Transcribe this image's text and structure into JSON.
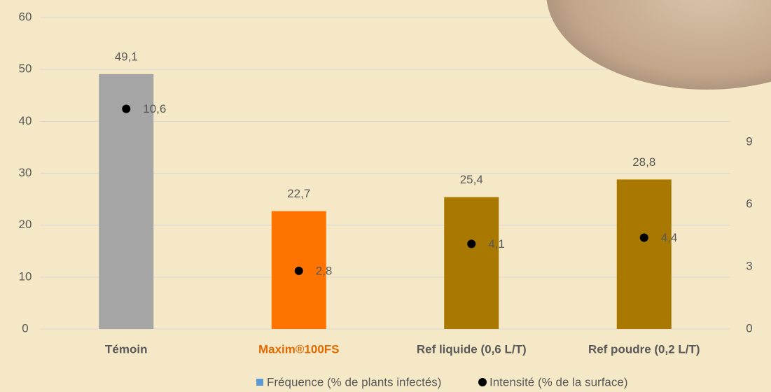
{
  "chart_data": {
    "type": "bar",
    "categories": [
      "Témoin",
      "Maxim®100FS",
      "Ref liquide (0,6 L/T)",
      "Ref poudre  (0,2 L/T)"
    ],
    "series": [
      {
        "name": "Fréquence (% de plants infectés)",
        "color": "#5b9bd5",
        "colors": [
          "#a5a5a5",
          "#ff7300",
          "#a87800",
          "#a87800"
        ],
        "values": [
          49.1,
          22.7,
          25.4,
          28.8
        ],
        "value_labels": [
          "49,1",
          "22,7",
          "25,4",
          "28,8"
        ]
      },
      {
        "name": "Intensité (% de la surface)",
        "color": "#000000",
        "axis": "y2",
        "values": [
          10.6,
          2.8,
          4.1,
          4.4
        ],
        "value_labels": [
          "10,6",
          "2,8",
          "4,1",
          "4,4"
        ]
      }
    ],
    "ylim": [
      0,
      60
    ],
    "yticks": [
      0,
      10,
      20,
      30,
      40,
      50,
      60
    ],
    "y2lim": [
      0,
      15
    ],
    "y2ticks": [
      0,
      3,
      6,
      9
    ],
    "grid": true
  }
}
